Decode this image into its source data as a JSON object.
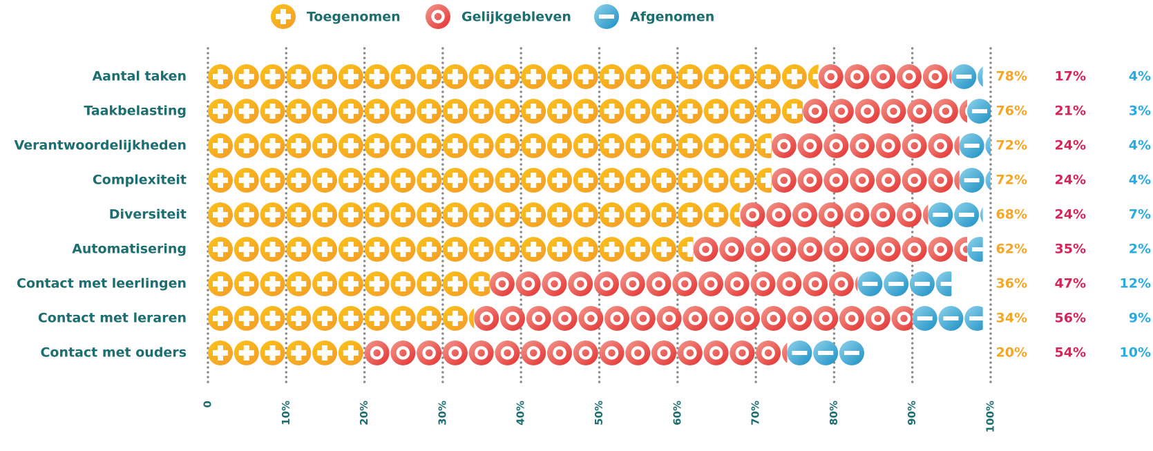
{
  "chart_data": {
    "type": "icon-stacked-bar",
    "categories": [
      "Aantal taken",
      "Taakbelasting",
      "Verantwoordelijkheden",
      "Complexiteit",
      "Diversiteit",
      "Automatisering",
      "Contact met leerlingen",
      "Contact met leraren",
      "Contact met ouders"
    ],
    "series": [
      {
        "name": "Toegenomen",
        "color": "#f5a623",
        "values": [
          78,
          76,
          72,
          72,
          68,
          62,
          36,
          34,
          20
        ],
        "value_labels": [
          "78%",
          "76%",
          "72%",
          "72%",
          "68%",
          "62%",
          "36%",
          "34%",
          "20%"
        ]
      },
      {
        "name": "Gelijkgebleven",
        "color": "#e8453c",
        "values": [
          17,
          21,
          24,
          24,
          24,
          35,
          47,
          56,
          54
        ],
        "value_labels": [
          "17%",
          "21%",
          "24%",
          "24%",
          "24%",
          "35%",
          "47%",
          "56%",
          "54%"
        ]
      },
      {
        "name": "Afgenomen",
        "color": "#2fa3d1",
        "values": [
          4,
          3,
          4,
          4,
          7,
          2,
          12,
          9,
          10
        ],
        "value_labels": [
          "4%",
          "3%",
          "4%",
          "4%",
          "7%",
          "2%",
          "12%",
          "9%",
          "10%"
        ]
      }
    ],
    "label_colors": [
      "#f5a623",
      "#d6245a",
      "#29abe2"
    ],
    "xlim": [
      0,
      100
    ],
    "xticks": [
      0,
      {
        "value": 10,
        "label": "10%"
      },
      {
        "value": 20,
        "label": "20%"
      },
      {
        "value": 30,
        "label": "30%"
      },
      {
        "value": 40,
        "label": "40%"
      },
      {
        "value": 50,
        "label": "50%"
      },
      {
        "value": 60,
        "label": "60%"
      },
      {
        "value": 70,
        "label": "70%"
      },
      {
        "value": 80,
        "label": "80%"
      },
      {
        "value": 90,
        "label": "90%"
      },
      {
        "value": 100,
        "label": "100%"
      }
    ],
    "grid": true
  }
}
